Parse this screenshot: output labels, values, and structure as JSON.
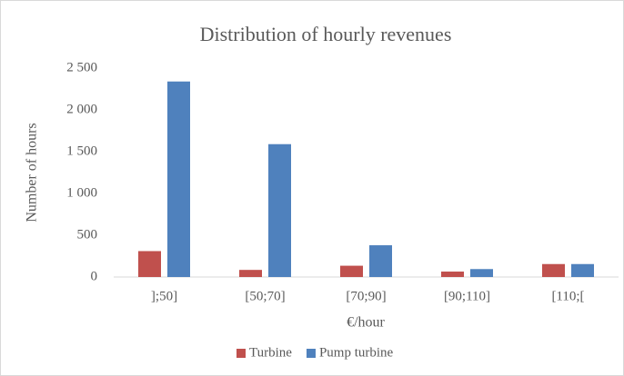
{
  "chart_data": {
    "type": "bar",
    "title": "Distribution of hourly revenues",
    "x_label": "€/hour",
    "y_label": "Number of hours",
    "categories": [
      "];50]",
      "[50;70]",
      "[70;90]",
      "[90;110]",
      "[110;["
    ],
    "series": [
      {
        "name": "Turbine",
        "color": "#c0504d",
        "values": [
          310,
          85,
          135,
          65,
          155
        ]
      },
      {
        "name": "Pump turbine",
        "color": "#4f81bd",
        "values": [
          2340,
          1590,
          380,
          95,
          155
        ]
      }
    ],
    "ylim": [
      0,
      2500
    ],
    "yticks": [
      0,
      500,
      {
        "value": 1000,
        "label": "1 000"
      },
      {
        "value": 1500,
        "label": "1 500"
      },
      {
        "value": 2000,
        "label": "2 000"
      },
      {
        "value": 2500,
        "label": "2 500"
      }
    ],
    "grid": false,
    "legend": "bottom"
  }
}
